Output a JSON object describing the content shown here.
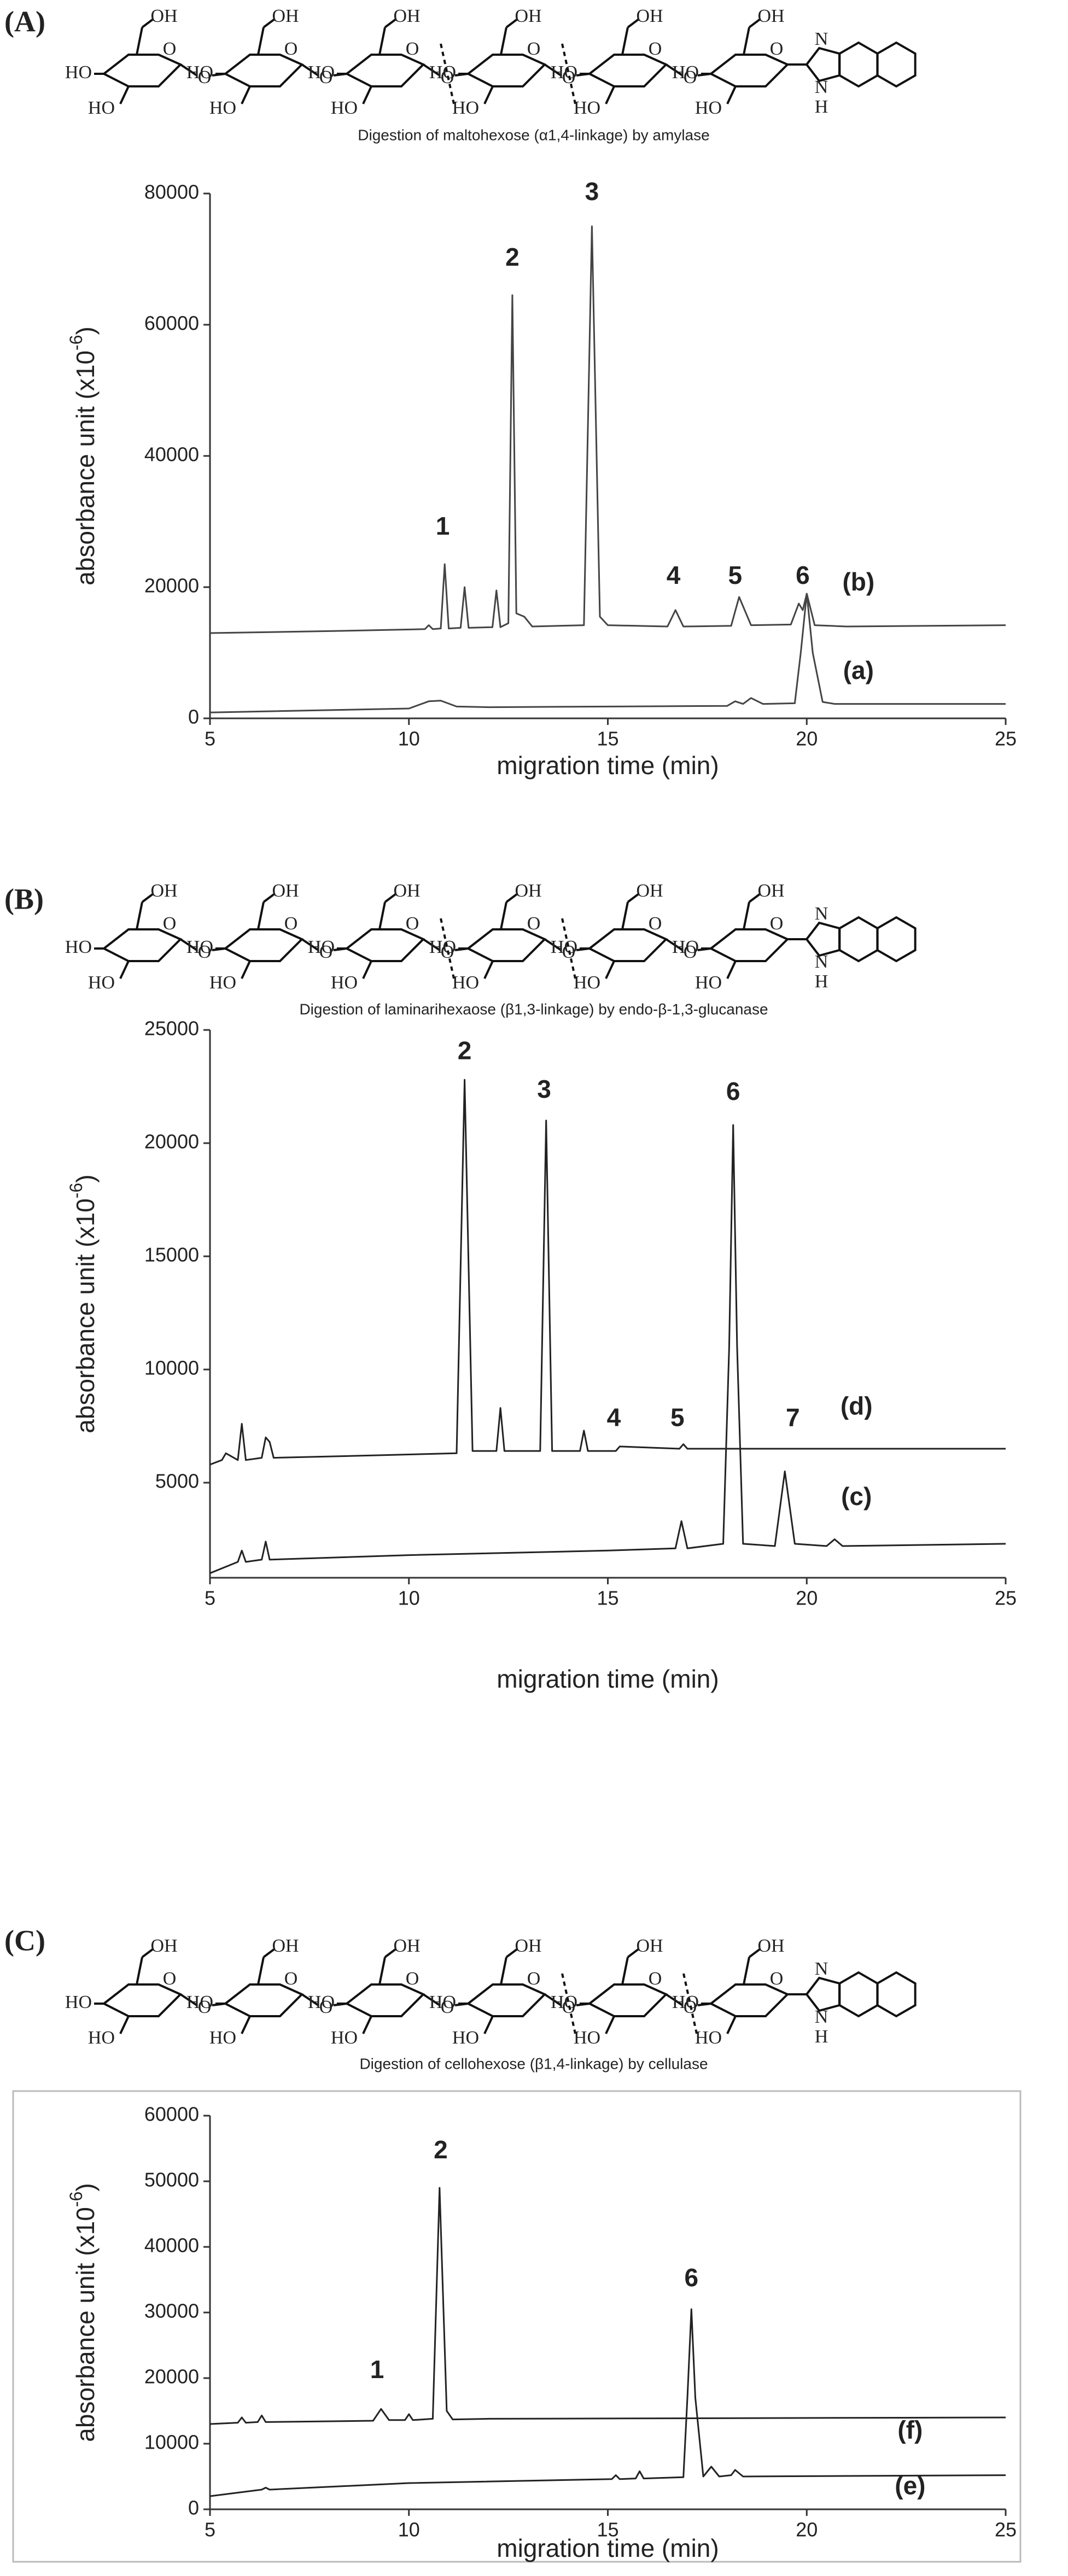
{
  "chart_data": [
    {
      "type": "line",
      "panel": "(A)",
      "title": "Digestion of maltohexose (α1,4-linkage) by amylase",
      "structure_labels": {
        "oh": "OH",
        "ho": "HO",
        "o": "O",
        "n": "N",
        "h": "H"
      },
      "xlabel": "migration  time (min)",
      "ylabel": "absorbance unit (x10",
      "ylabel_exponent": "-6",
      "ylabel_end": ")",
      "xlim": [
        5,
        25
      ],
      "xticks": [
        5,
        10,
        15,
        20,
        25
      ],
      "ylim": [
        0,
        80000
      ],
      "yticks": [
        0,
        20000,
        40000,
        60000,
        80000
      ],
      "series": [
        {
          "color": "#444444",
          "x": [
            5,
            8,
            10.4,
            10.5,
            10.6,
            10.8,
            10.9,
            11.0,
            11.3,
            11.4,
            11.5,
            12.1,
            12.2,
            12.3,
            12.5,
            12.6,
            12.7,
            12.9,
            13.1,
            14.4,
            14.6,
            14.8,
            15.0,
            16.5,
            16.7,
            16.9,
            18.1,
            18.3,
            18.6,
            19.6,
            19.8,
            19.9,
            20.0,
            20.2,
            21,
            25
          ],
          "values": [
            13000,
            13300,
            13600,
            14200,
            13600,
            13700,
            23500,
            13700,
            13800,
            20000,
            13800,
            13900,
            19500,
            13900,
            14500,
            64500,
            16000,
            15500,
            14000,
            14200,
            75000,
            15500,
            14200,
            14000,
            16500,
            14000,
            14100,
            18500,
            14200,
            14300,
            17500,
            16500,
            19000,
            14200,
            14000,
            14200
          ]
        },
        {
          "color": "#444444",
          "x": [
            5,
            10,
            10.5,
            10.8,
            11.2,
            12,
            18,
            18.2,
            18.4,
            18.6,
            18.9,
            19.7,
            19.85,
            20.0,
            20.15,
            20.4,
            20.7,
            25
          ],
          "values": [
            900,
            1500,
            2600,
            2700,
            1800,
            1700,
            1900,
            2600,
            2200,
            3100,
            2200,
            2300,
            10000,
            19000,
            10000,
            2500,
            2200,
            2200
          ]
        }
      ],
      "annotations": [
        {
          "text": "1",
          "x": 10.85,
          "y": 29000
        },
        {
          "text": "2",
          "x": 12.6,
          "y": 70000
        },
        {
          "text": "3",
          "x": 14.6,
          "y": 80000
        },
        {
          "text": "4",
          "x": 16.65,
          "y": 21500
        },
        {
          "text": "5",
          "x": 18.2,
          "y": 21500
        },
        {
          "text": "6",
          "x": 19.9,
          "y": 21500
        },
        {
          "text": "(b)",
          "x": 21.3,
          "y": 20500
        },
        {
          "text": "(a)",
          "x": 21.3,
          "y": 7000
        }
      ]
    },
    {
      "type": "line",
      "panel": "(B)",
      "title": "Digestion of laminarihexaose (β1,3-linkage) by endo-β-1,3-glucanase",
      "structure_labels": {
        "oh": "OH",
        "ho": "HO",
        "o": "O",
        "n": "N",
        "h": "H"
      },
      "xlabel": "migration time (min)",
      "ylabel": "absorbance unit (x10",
      "ylabel_exponent": "-6",
      "ylabel_end": ")",
      "xlim": [
        5,
        25
      ],
      "xticks": [
        5,
        10,
        15,
        20,
        25
      ],
      "ylim": [
        800,
        25000
      ],
      "yticks": [
        5000,
        10000,
        15000,
        20000,
        25000
      ],
      "series": [
        {
          "color": "#222222",
          "x": [
            5,
            5.3,
            5.4,
            5.7,
            5.8,
            5.9,
            6.3,
            6.4,
            6.5,
            6.6,
            9,
            11.2,
            11.4,
            11.6,
            12.2,
            12.3,
            12.4,
            13.3,
            13.45,
            13.6,
            14.3,
            14.4,
            14.5,
            15.2,
            15.3,
            16.8,
            16.9,
            17,
            25
          ],
          "values": [
            5800,
            6000,
            6300,
            6000,
            7600,
            6000,
            6100,
            7000,
            6800,
            6100,
            6200,
            6300,
            22800,
            6400,
            6400,
            8300,
            6400,
            6400,
            21000,
            6400,
            6400,
            7300,
            6400,
            6400,
            6600,
            6500,
            6700,
            6500,
            6500
          ]
        },
        {
          "color": "#222222",
          "x": [
            5,
            5.7,
            5.8,
            5.9,
            6.3,
            6.4,
            6.5,
            10,
            15,
            16.7,
            16.85,
            17,
            17.9,
            18.05,
            18.15,
            18.25,
            18.4,
            19.2,
            19.45,
            19.7,
            20.5,
            20.7,
            20.9,
            25
          ],
          "values": [
            1000,
            1500,
            2000,
            1500,
            1600,
            2400,
            1600,
            1800,
            2000,
            2100,
            3300,
            2100,
            2300,
            11000,
            20800,
            11000,
            2300,
            2200,
            5500,
            2300,
            2200,
            2500,
            2200,
            2300
          ]
        }
      ],
      "annotations": [
        {
          "text": "2",
          "x": 11.4,
          "y": 24000
        },
        {
          "text": "3",
          "x": 13.4,
          "y": 22300
        },
        {
          "text": "4",
          "x": 15.15,
          "y": 7800
        },
        {
          "text": "5",
          "x": 16.75,
          "y": 7800
        },
        {
          "text": "6",
          "x": 18.15,
          "y": 22200
        },
        {
          "text": "7",
          "x": 19.65,
          "y": 7800
        },
        {
          "text": "(d)",
          "x": 21.25,
          "y": 8300
        },
        {
          "text": "(c)",
          "x": 21.25,
          "y": 4300
        }
      ]
    },
    {
      "type": "line",
      "panel": "(C)",
      "title": "Digestion of cellohexose (β1,4-linkage) by cellulase",
      "structure_labels": {
        "oh": "OH",
        "ho": "HO",
        "o": "O",
        "n": "N",
        "h": "H"
      },
      "xlabel": "migration time (min)",
      "ylabel": "absorbance unit (x10",
      "ylabel_exponent": "-6",
      "ylabel_end": ")",
      "xlim": [
        5,
        25
      ],
      "xticks": [
        5,
        10,
        15,
        20,
        25
      ],
      "ylim": [
        0,
        60000
      ],
      "yticks": [
        0,
        10000,
        20000,
        30000,
        40000,
        50000,
        60000
      ],
      "series": [
        {
          "color": "#222222",
          "x": [
            5,
            5.7,
            5.8,
            5.9,
            6.2,
            6.3,
            6.4,
            9.1,
            9.3,
            9.5,
            9.9,
            10.0,
            10.1,
            10.6,
            10.77,
            10.95,
            11.1,
            12,
            25
          ],
          "values": [
            13000,
            13200,
            14000,
            13200,
            13300,
            14300,
            13300,
            13500,
            15300,
            13600,
            13600,
            14500,
            13600,
            13800,
            49000,
            15000,
            13700,
            13800,
            14000
          ]
        },
        {
          "color": "#222222",
          "x": [
            5,
            6.3,
            6.4,
            6.5,
            10,
            15.1,
            15.2,
            15.3,
            15.7,
            15.8,
            15.9,
            16.9,
            17.0,
            17.1,
            17.2,
            17.4,
            17.6,
            17.8,
            18.1,
            18.2,
            18.4,
            25
          ],
          "values": [
            2000,
            3000,
            3300,
            3000,
            4000,
            4600,
            5200,
            4600,
            4700,
            5800,
            4700,
            4900,
            17000,
            30500,
            17000,
            5000,
            6500,
            5000,
            5200,
            6000,
            5000,
            5200
          ]
        }
      ],
      "annotations": [
        {
          "text": "1",
          "x": 9.2,
          "y": 21000
        },
        {
          "text": "2",
          "x": 10.8,
          "y": 54500
        },
        {
          "text": "6",
          "x": 17.1,
          "y": 35000
        },
        {
          "text": "(f)",
          "x": 22.6,
          "y": 11800
        },
        {
          "text": "(e)",
          "x": 22.6,
          "y": 3300
        }
      ]
    }
  ]
}
